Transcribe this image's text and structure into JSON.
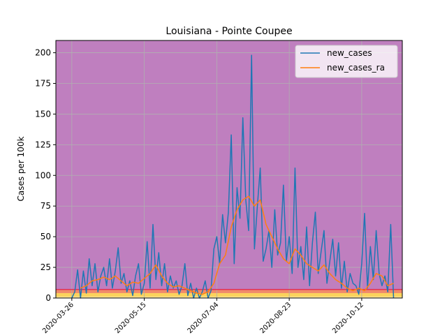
{
  "chart_data": {
    "type": "line",
    "title": "Louisiana - Pointe Coupee",
    "xlabel": "",
    "ylabel": "Cases per 100k",
    "ylim": [
      0,
      210
    ],
    "xlim": [
      "2020-03-15",
      "2020-11-09"
    ],
    "y_ticks": [
      0,
      25,
      50,
      75,
      100,
      125,
      150,
      175,
      200
    ],
    "y_tick_labels": [
      "0",
      "25",
      "50",
      "75",
      "100",
      "125",
      "150",
      "175",
      "200"
    ],
    "x_ticks": [
      "2020-03-26",
      "2020-05-15",
      "2020-07-04",
      "2020-08-23",
      "2020-10-12"
    ],
    "x_tick_labels": [
      "2020-03-26",
      "2020-05-15",
      "2020-07-04",
      "2020-08-23",
      "2020-10-12"
    ],
    "grid": true,
    "legend_position": "top-right",
    "background_bands": [
      {
        "from": 0,
        "to": 1,
        "color": "#fbe8a0"
      },
      {
        "from": 1,
        "to": 4,
        "color": "#fbd35c"
      },
      {
        "from": 4,
        "to": 7,
        "color": "#f08a6a"
      },
      {
        "from": 7,
        "to": 210,
        "color": "#bf7fbf"
      }
    ],
    "threshold_line": {
      "y": 7,
      "color": "#e0305a"
    },
    "series": [
      {
        "name": "new_cases",
        "color": "#1f77b4",
        "x": [
          "2020-03-26",
          "2020-03-28",
          "2020-03-30",
          "2020-04-01",
          "2020-04-03",
          "2020-04-05",
          "2020-04-07",
          "2020-04-09",
          "2020-04-11",
          "2020-04-13",
          "2020-04-15",
          "2020-04-17",
          "2020-04-19",
          "2020-04-21",
          "2020-04-23",
          "2020-04-25",
          "2020-04-27",
          "2020-04-29",
          "2020-05-01",
          "2020-05-03",
          "2020-05-05",
          "2020-05-07",
          "2020-05-09",
          "2020-05-11",
          "2020-05-13",
          "2020-05-15",
          "2020-05-17",
          "2020-05-19",
          "2020-05-21",
          "2020-05-23",
          "2020-05-25",
          "2020-05-27",
          "2020-05-29",
          "2020-05-31",
          "2020-06-02",
          "2020-06-04",
          "2020-06-06",
          "2020-06-08",
          "2020-06-10",
          "2020-06-12",
          "2020-06-14",
          "2020-06-16",
          "2020-06-18",
          "2020-06-20",
          "2020-06-22",
          "2020-06-24",
          "2020-06-26",
          "2020-06-28",
          "2020-06-30",
          "2020-07-02",
          "2020-07-04",
          "2020-07-06",
          "2020-07-08",
          "2020-07-10",
          "2020-07-12",
          "2020-07-14",
          "2020-07-16",
          "2020-07-18",
          "2020-07-20",
          "2020-07-22",
          "2020-07-24",
          "2020-07-26",
          "2020-07-28",
          "2020-07-30",
          "2020-08-01",
          "2020-08-03",
          "2020-08-05",
          "2020-08-07",
          "2020-08-09",
          "2020-08-11",
          "2020-08-13",
          "2020-08-15",
          "2020-08-17",
          "2020-08-19",
          "2020-08-21",
          "2020-08-23",
          "2020-08-25",
          "2020-08-27",
          "2020-08-29",
          "2020-08-31",
          "2020-09-02",
          "2020-09-04",
          "2020-09-06",
          "2020-09-08",
          "2020-09-10",
          "2020-09-12",
          "2020-09-14",
          "2020-09-16",
          "2020-09-18",
          "2020-09-20",
          "2020-09-22",
          "2020-09-24",
          "2020-09-26",
          "2020-09-28",
          "2020-09-30",
          "2020-10-02",
          "2020-10-04",
          "2020-10-06",
          "2020-10-08",
          "2020-10-10",
          "2020-10-12",
          "2020-10-14",
          "2020-10-16",
          "2020-10-18",
          "2020-10-20",
          "2020-10-22",
          "2020-10-24",
          "2020-10-26",
          "2020-10-28",
          "2020-10-30",
          "2020-11-01",
          "2020-11-03"
        ],
        "y": [
          0,
          5,
          23,
          0,
          22,
          4,
          32,
          10,
          28,
          5,
          18,
          25,
          10,
          32,
          8,
          22,
          41,
          12,
          20,
          5,
          14,
          2,
          18,
          28,
          3,
          12,
          46,
          8,
          60,
          15,
          37,
          10,
          28,
          5,
          18,
          8,
          14,
          3,
          10,
          28,
          2,
          12,
          0,
          8,
          0,
          5,
          14,
          0,
          6,
          40,
          50,
          28,
          68,
          45,
          70,
          133,
          28,
          90,
          65,
          147,
          80,
          55,
          198,
          40,
          75,
          106,
          30,
          40,
          55,
          25,
          72,
          35,
          45,
          92,
          30,
          50,
          20,
          106,
          25,
          42,
          15,
          58,
          10,
          45,
          70,
          20,
          38,
          55,
          12,
          30,
          48,
          18,
          45,
          8,
          30,
          5,
          20,
          12,
          10,
          3,
          28,
          69,
          8,
          42,
          15,
          55,
          20,
          10,
          18,
          5,
          60,
          0
        ]
      },
      {
        "name": "new_cases_ra",
        "color": "#ff7f0e",
        "x": [
          "2020-04-01",
          "2020-04-05",
          "2020-04-09",
          "2020-04-13",
          "2020-04-17",
          "2020-04-21",
          "2020-04-25",
          "2020-04-29",
          "2020-05-03",
          "2020-05-07",
          "2020-05-11",
          "2020-05-15",
          "2020-05-19",
          "2020-05-23",
          "2020-05-27",
          "2020-05-31",
          "2020-06-04",
          "2020-06-08",
          "2020-06-12",
          "2020-06-16",
          "2020-06-20",
          "2020-06-24",
          "2020-06-28",
          "2020-07-02",
          "2020-07-06",
          "2020-07-10",
          "2020-07-14",
          "2020-07-18",
          "2020-07-22",
          "2020-07-26",
          "2020-07-30",
          "2020-08-03",
          "2020-08-07",
          "2020-08-11",
          "2020-08-15",
          "2020-08-19",
          "2020-08-23",
          "2020-08-27",
          "2020-08-31",
          "2020-09-04",
          "2020-09-08",
          "2020-09-12",
          "2020-09-16",
          "2020-09-20",
          "2020-09-24",
          "2020-09-28",
          "2020-10-02",
          "2020-10-06",
          "2020-10-10",
          "2020-10-14",
          "2020-10-18",
          "2020-10-22",
          "2020-10-26",
          "2020-10-30",
          "2020-11-03"
        ],
        "y": [
          8,
          10,
          14,
          15,
          17,
          15,
          18,
          14,
          10,
          13,
          12,
          16,
          20,
          27,
          18,
          12,
          9,
          10,
          8,
          6,
          4,
          3,
          5,
          12,
          28,
          35,
          58,
          72,
          80,
          83,
          75,
          80,
          60,
          50,
          40,
          32,
          28,
          40,
          35,
          28,
          25,
          22,
          27,
          20,
          15,
          12,
          8,
          6,
          8,
          6,
          12,
          20,
          18,
          10,
          12
        ]
      }
    ]
  }
}
